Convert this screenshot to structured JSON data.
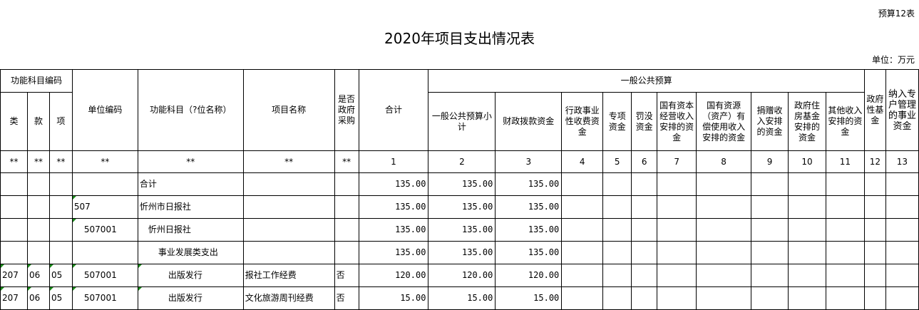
{
  "form_code": "预算12表",
  "title": "2020年项目支出情况表",
  "unit": "单位：万元",
  "headers": {
    "func_code": "功能科目编码",
    "lei": "类",
    "kuan": "款",
    "xiang": "项",
    "unit_code": "单位编码",
    "func_name": "功能科目（?位名称）",
    "project_name": "项目名称",
    "gov_purchase": "是否政府采购",
    "total": "合计",
    "general_budget": "一般公共预算",
    "sub": [
      "一般公共预算小计",
      "财政拨款资金",
      "行政事业性收费资金",
      "专项资金",
      "罚没资金",
      "国有资本经营收入安排的资金",
      "国有资源（资产）有偿使用收入安排的资金",
      "捐赠收入安排的资金",
      "政府住房基金安排的资金",
      "其他收入安排的资金"
    ],
    "gov_fund": "政府性基金",
    "special_account": "纳入专户管理的事业资金"
  },
  "index_row": [
    "**",
    "**",
    "**",
    "**",
    "**",
    "**",
    "**",
    "1",
    "2",
    "3",
    "4",
    "5",
    "6",
    "7",
    "8",
    "9",
    "10",
    "11",
    "12",
    "13"
  ],
  "rows": [
    {
      "lei": "",
      "kuan": "",
      "xiang": "",
      "unit_code": "",
      "name": "合计",
      "project": "",
      "purchase": "",
      "total": "135.00",
      "subtotal": "135.00",
      "fiscal": "135.00"
    },
    {
      "lei": "",
      "kuan": "",
      "xiang": "",
      "unit_code": "507",
      "name": "忻州市日报社",
      "project": "",
      "purchase": "",
      "total": "135.00",
      "subtotal": "135.00",
      "fiscal": "135.00"
    },
    {
      "lei": "",
      "kuan": "",
      "xiang": "",
      "unit_code": "507001",
      "name": "忻州日报社",
      "project": "",
      "purchase": "",
      "total": "135.00",
      "subtotal": "135.00",
      "fiscal": "135.00"
    },
    {
      "lei": "",
      "kuan": "",
      "xiang": "",
      "unit_code": "",
      "name": "事业发展类支出",
      "project": "",
      "purchase": "",
      "total": "135.00",
      "subtotal": "135.00",
      "fiscal": "135.00"
    },
    {
      "lei": "207",
      "kuan": "06",
      "xiang": "05",
      "unit_code": "507001",
      "name": "出版发行",
      "project": "报社工作经费",
      "purchase": "否",
      "total": "120.00",
      "subtotal": "120.00",
      "fiscal": "120.00"
    },
    {
      "lei": "207",
      "kuan": "06",
      "xiang": "05",
      "unit_code": "507001",
      "name": "出版发行",
      "project": "文化旅游周刊经费",
      "purchase": "否",
      "total": "15.00",
      "subtotal": "15.00",
      "fiscal": "15.00"
    }
  ]
}
